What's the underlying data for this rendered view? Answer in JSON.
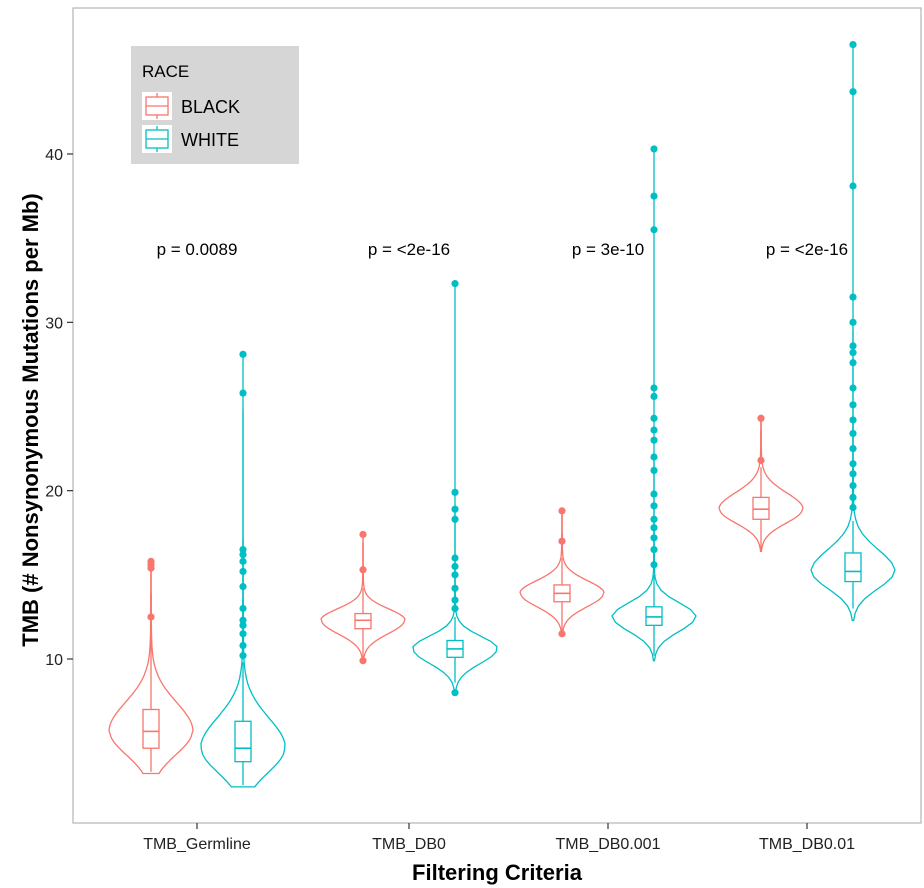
{
  "chart_data": {
    "type": "violin",
    "xlabel": "Filtering Criteria",
    "ylabel": "TMB (# Nonsynonymous Mutations per Mb)",
    "ylim": [
      0,
      48
    ],
    "yticks": [
      10,
      20,
      30,
      40
    ],
    "categories": [
      "TMB_Germline",
      "TMB_DB0",
      "TMB_DB0.001",
      "TMB_DB0.01"
    ],
    "legend": {
      "title": "RACE",
      "position": "top-left"
    },
    "grid": false,
    "colors": {
      "BLACK": "#F8766D",
      "WHITE": "#00BFC4"
    },
    "p_values": [
      "p = 0.0089",
      "p = <2e-16",
      "p = 3e-10",
      "p = <2e-16"
    ],
    "series": [
      {
        "name": "BLACK",
        "groups": [
          {
            "category": "TMB_Germline",
            "min": 3.3,
            "q1": 4.7,
            "median": 5.7,
            "q3": 7.0,
            "max": 11.8,
            "outliers": [
              12.5,
              15.4,
              15.6,
              15.8
            ],
            "violin_min": 3.2,
            "violin_max": 15.9
          },
          {
            "category": "TMB_DB0",
            "min": 10.0,
            "q1": 11.8,
            "median": 12.3,
            "q3": 12.7,
            "max": 14.2,
            "outliers": [
              9.9,
              15.3,
              17.4
            ],
            "violin_min": 9.9,
            "violin_max": 17.5
          },
          {
            "category": "TMB_DB0.001",
            "min": 11.6,
            "q1": 13.4,
            "median": 13.9,
            "q3": 14.4,
            "max": 16.0,
            "outliers": [
              11.5,
              17.0,
              18.8
            ],
            "violin_min": 11.5,
            "violin_max": 18.8
          },
          {
            "category": "TMB_DB0.01",
            "min": 16.5,
            "q1": 18.3,
            "median": 18.9,
            "q3": 19.6,
            "max": 21.4,
            "outliers": [
              21.8,
              24.3
            ],
            "violin_min": 16.4,
            "violin_max": 24.3
          }
        ]
      },
      {
        "name": "WHITE",
        "groups": [
          {
            "category": "TMB_Germline",
            "min": 2.5,
            "q1": 3.9,
            "median": 4.7,
            "q3": 6.3,
            "max": 9.8,
            "outliers": [
              10.2,
              10.8,
              11.5,
              12.0,
              12.3,
              13.0,
              14.3,
              15.2,
              15.8,
              16.2,
              16.5,
              25.8,
              28.1
            ],
            "violin_min": 2.4,
            "violin_max": 28.2
          },
          {
            "category": "TMB_DB0",
            "min": 8.6,
            "q1": 10.1,
            "median": 10.6,
            "q3": 11.1,
            "max": 12.5,
            "outliers": [
              8.0,
              13.0,
              13.5,
              14.2,
              15.0,
              15.5,
              16.0,
              18.3,
              18.9,
              19.9,
              32.3
            ],
            "violin_min": 8.0,
            "violin_max": 32.3
          },
          {
            "category": "TMB_DB0.001",
            "min": 10.2,
            "q1": 12.0,
            "median": 12.5,
            "q3": 13.1,
            "max": 15.0,
            "outliers": [
              15.6,
              16.5,
              17.2,
              17.8,
              18.3,
              19.1,
              19.8,
              21.2,
              22.0,
              23.0,
              23.6,
              24.3,
              25.6,
              26.1,
              35.5,
              37.5,
              40.3
            ],
            "violin_min": 9.9,
            "violin_max": 40.3
          },
          {
            "category": "TMB_DB0.01",
            "min": 13.0,
            "q1": 14.6,
            "median": 15.2,
            "q3": 16.3,
            "max": 18.2,
            "outliers": [
              19.0,
              19.6,
              20.3,
              21.0,
              21.6,
              22.5,
              23.4,
              24.2,
              25.1,
              26.1,
              27.6,
              28.2,
              28.6,
              30.0,
              31.5,
              38.1,
              43.7,
              46.5
            ],
            "violin_min": 12.3,
            "violin_max": 46.5
          }
        ]
      }
    ]
  }
}
